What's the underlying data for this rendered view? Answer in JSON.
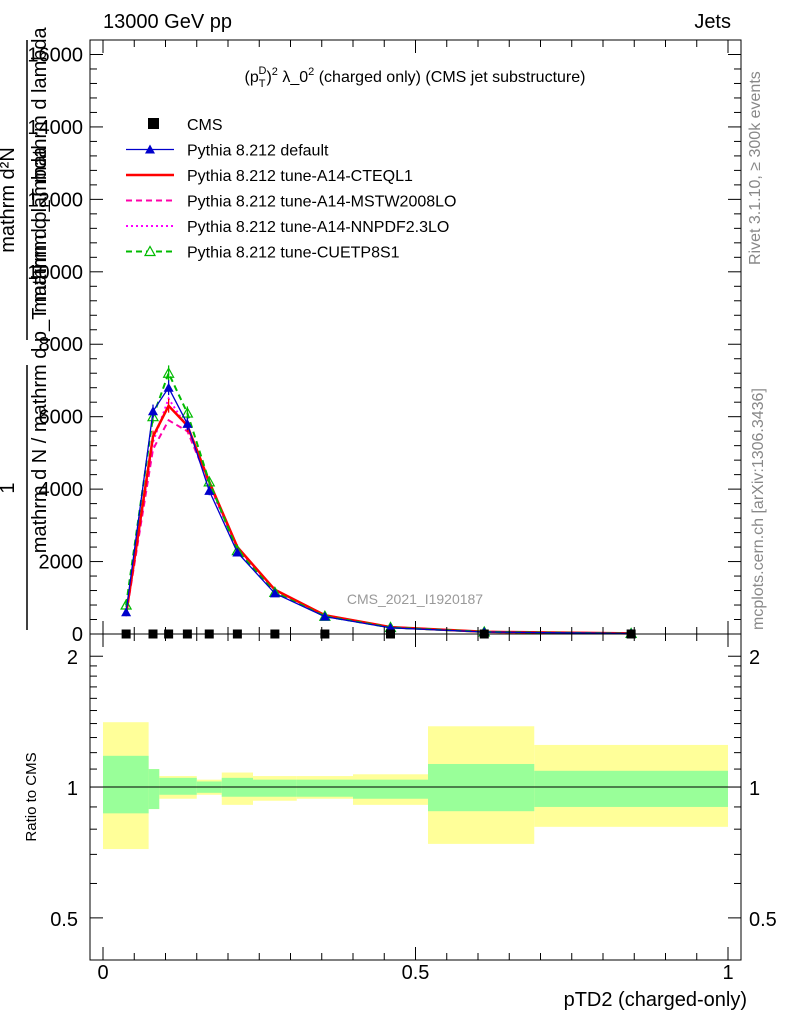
{
  "header": {
    "left": "13000 GeV pp",
    "right": "Jets"
  },
  "side_labels": {
    "rivet": "Rivet 3.1.10, ≥ 300k events",
    "mcplots": "mcplots.cern.ch [arXiv:1306.3436]"
  },
  "chart_data": [
    {
      "type": "line",
      "title": "(p_T^D)^2 λ_0^2 (charged only) (CMS jet substructure)",
      "watermark": "CMS_2021_I1920187",
      "ylabel_parts": [
        "1",
        "mathrm d N / mathrm d p_T mathrm d lambda",
        "mathrm d²N",
        "mathrm d p_T mathrm d lambda"
      ],
      "ylim": [
        0,
        16400
      ],
      "xlim": [
        0,
        1
      ],
      "yticks": [
        0,
        2000,
        4000,
        6000,
        8000,
        10000,
        12000,
        14000,
        16000
      ],
      "ytick_labels": [
        "0",
        "2000",
        "4000",
        "6000",
        "8000",
        "10000",
        "12000",
        "14000",
        "16000"
      ],
      "legend_placement": "top-left",
      "x": [
        0.037,
        0.08,
        0.105,
        0.135,
        0.17,
        0.215,
        0.275,
        0.355,
        0.46,
        0.61,
        0.845
      ],
      "series": [
        {
          "name": "CMS",
          "color": "#000000",
          "marker": "square",
          "style": "points",
          "values": [
            0,
            0,
            0,
            0,
            0,
            0,
            0,
            0,
            0,
            0,
            0
          ]
        },
        {
          "name": "Pythia 8.212 default",
          "color": "#0000cc",
          "marker": "triangle-filled",
          "style": "solid",
          "values": [
            600,
            6150,
            6800,
            5800,
            3950,
            2250,
            1120,
            480,
            170,
            55,
            15
          ]
        },
        {
          "name": "Pythia 8.212 tune-A14-CTEQL1",
          "color": "#ff0000",
          "marker": "none",
          "style": "solid",
          "values": [
            550,
            5450,
            6300,
            5750,
            4200,
            2400,
            1220,
            520,
            190,
            60,
            16
          ]
        },
        {
          "name": "Pythia 8.212 tune-A14-MSTW2008LO",
          "color": "#ff00aa",
          "marker": "none",
          "style": "dashed",
          "values": [
            520,
            5100,
            5900,
            5600,
            4150,
            2380,
            1220,
            520,
            190,
            60,
            16
          ]
        },
        {
          "name": "Pythia 8.212 tune-A14-NNPDF2.3LO",
          "color": "#ff00ff",
          "marker": "none",
          "style": "dotted",
          "values": [
            540,
            5300,
            6500,
            5700,
            4100,
            2350,
            1200,
            510,
            185,
            58,
            15
          ]
        },
        {
          "name": "Pythia 8.212 tune-CUETP8S1",
          "color": "#00bb00",
          "marker": "triangle-open",
          "style": "dashed",
          "values": [
            800,
            6000,
            7200,
            6100,
            4200,
            2300,
            1150,
            490,
            180,
            57,
            15
          ]
        }
      ]
    },
    {
      "type": "area",
      "ylabel": "Ratio to CMS",
      "xlabel": "pTD2 (charged-only)",
      "ylim": [
        0.4,
        2.25
      ],
      "xlim": [
        0,
        1
      ],
      "yticks": [
        0.5,
        1,
        2
      ],
      "ytick_labels": [
        "0.5",
        "1",
        "2"
      ],
      "xticks": [
        0,
        0.5,
        1
      ],
      "xtick_labels": [
        "0",
        "0.5",
        "1"
      ],
      "reference_line": 1,
      "bands": [
        {
          "x0": 0.0,
          "x1": 0.073,
          "inner": [
            0.87,
            1.18
          ],
          "outer": [
            0.72,
            1.41
          ]
        },
        {
          "x0": 0.073,
          "x1": 0.09,
          "inner": [
            0.89,
            1.1
          ],
          "outer": [
            0.89,
            1.1
          ]
        },
        {
          "x0": 0.09,
          "x1": 0.15,
          "inner": [
            0.96,
            1.05
          ],
          "outer": [
            0.94,
            1.06
          ]
        },
        {
          "x0": 0.15,
          "x1": 0.19,
          "inner": [
            0.97,
            1.03
          ],
          "outer": [
            0.96,
            1.04
          ]
        },
        {
          "x0": 0.19,
          "x1": 0.24,
          "inner": [
            0.95,
            1.05
          ],
          "outer": [
            0.91,
            1.08
          ]
        },
        {
          "x0": 0.24,
          "x1": 0.31,
          "inner": [
            0.95,
            1.04
          ],
          "outer": [
            0.93,
            1.06
          ]
        },
        {
          "x0": 0.31,
          "x1": 0.4,
          "inner": [
            0.95,
            1.04
          ],
          "outer": [
            0.94,
            1.06
          ]
        },
        {
          "x0": 0.4,
          "x1": 0.52,
          "inner": [
            0.94,
            1.04
          ],
          "outer": [
            0.91,
            1.07
          ]
        },
        {
          "x0": 0.52,
          "x1": 0.69,
          "inner": [
            0.88,
            1.13
          ],
          "outer": [
            0.74,
            1.38
          ]
        },
        {
          "x0": 0.69,
          "x1": 1.0,
          "inner": [
            0.9,
            1.09
          ],
          "outer": [
            0.81,
            1.25
          ]
        }
      ],
      "inner_color": "#99ff99",
      "outer_color": "#ffff99"
    }
  ]
}
